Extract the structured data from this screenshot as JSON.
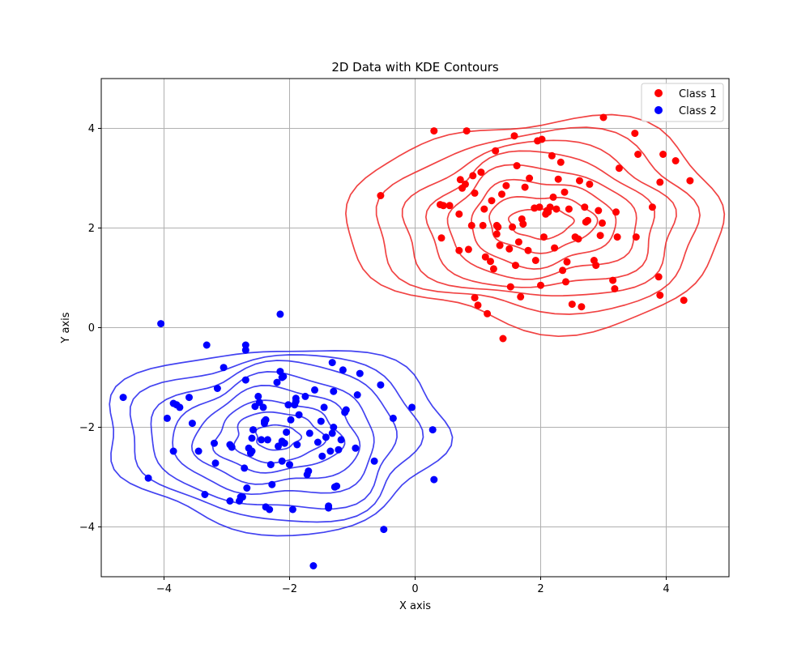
{
  "chart_data": {
    "type": "scatter",
    "title": "2D Data with KDE Contours",
    "xlabel": "X axis",
    "ylabel": "Y axis",
    "xlim": [
      -5,
      5
    ],
    "ylim": [
      -5,
      5
    ],
    "xticks": [
      -4,
      -2,
      0,
      2,
      4
    ],
    "yticks": [
      -4,
      -2,
      0,
      2,
      4
    ],
    "xtick_labels": [
      "−4",
      "−2",
      "0",
      "2",
      "4"
    ],
    "ytick_labels": [
      "−4",
      "−2",
      "0",
      "2",
      "4"
    ],
    "grid": true,
    "legend_position": "top-right",
    "series": [
      {
        "name": "Class 1",
        "color": "#ff0000",
        "contour_color": "#ee2222",
        "contour_center": [
          2.0,
          2.1
        ],
        "contour_radii": [
          [
            0.5,
            0.3
          ],
          [
            0.85,
            0.55
          ],
          [
            1.15,
            0.85
          ],
          [
            1.5,
            1.1
          ],
          [
            1.8,
            1.35
          ],
          [
            2.15,
            1.55
          ],
          [
            2.55,
            1.8
          ],
          [
            3.0,
            2.1
          ]
        ],
        "points": [
          [
            -0.55,
            2.65
          ],
          [
            0.3,
            3.95
          ],
          [
            0.4,
            2.47
          ],
          [
            0.42,
            1.8
          ],
          [
            0.55,
            2.45
          ],
          [
            0.7,
            2.28
          ],
          [
            0.7,
            1.55
          ],
          [
            0.72,
            2.97
          ],
          [
            0.75,
            2.8
          ],
          [
            0.8,
            2.88
          ],
          [
            0.82,
            3.95
          ],
          [
            0.85,
            1.57
          ],
          [
            0.9,
            2.05
          ],
          [
            0.92,
            3.05
          ],
          [
            0.95,
            2.7
          ],
          [
            0.95,
            0.6
          ],
          [
            1.0,
            0.45
          ],
          [
            1.05,
            3.12
          ],
          [
            1.08,
            2.05
          ],
          [
            1.1,
            2.38
          ],
          [
            1.12,
            1.42
          ],
          [
            1.15,
            0.28
          ],
          [
            1.2,
            1.33
          ],
          [
            1.22,
            2.55
          ],
          [
            1.25,
            1.18
          ],
          [
            1.28,
            3.55
          ],
          [
            1.3,
            1.88
          ],
          [
            1.32,
            2.02
          ],
          [
            1.35,
            1.65
          ],
          [
            1.38,
            2.68
          ],
          [
            1.4,
            -0.22
          ],
          [
            1.45,
            2.85
          ],
          [
            1.5,
            1.58
          ],
          [
            1.52,
            0.82
          ],
          [
            1.55,
            2.02
          ],
          [
            1.58,
            3.85
          ],
          [
            1.6,
            1.25
          ],
          [
            1.62,
            3.25
          ],
          [
            1.65,
            1.72
          ],
          [
            1.68,
            0.62
          ],
          [
            1.7,
            2.18
          ],
          [
            1.72,
            2.08
          ],
          [
            1.75,
            2.82
          ],
          [
            1.8,
            1.55
          ],
          [
            1.82,
            3.0
          ],
          [
            1.92,
            1.35
          ],
          [
            1.95,
            3.75
          ],
          [
            1.98,
            2.42
          ],
          [
            2.0,
            0.85
          ],
          [
            2.02,
            3.78
          ],
          [
            2.05,
            1.82
          ],
          [
            2.1,
            2.35
          ],
          [
            2.12,
            2.32
          ],
          [
            2.15,
            2.42
          ],
          [
            2.18,
            3.45
          ],
          [
            2.2,
            2.62
          ],
          [
            2.22,
            1.6
          ],
          [
            2.25,
            2.38
          ],
          [
            2.28,
            2.98
          ],
          [
            2.32,
            3.32
          ],
          [
            2.35,
            1.15
          ],
          [
            2.38,
            2.72
          ],
          [
            2.4,
            0.92
          ],
          [
            2.42,
            1.32
          ],
          [
            2.45,
            2.38
          ],
          [
            2.5,
            0.47
          ],
          [
            2.55,
            1.82
          ],
          [
            2.6,
            1.78
          ],
          [
            2.62,
            2.95
          ],
          [
            2.65,
            0.42
          ],
          [
            2.7,
            2.42
          ],
          [
            2.72,
            2.12
          ],
          [
            2.75,
            2.15
          ],
          [
            2.78,
            2.88
          ],
          [
            2.85,
            1.35
          ],
          [
            2.88,
            1.25
          ],
          [
            2.92,
            2.35
          ],
          [
            2.95,
            1.85
          ],
          [
            2.98,
            2.1
          ],
          [
            3.0,
            4.22
          ],
          [
            3.15,
            0.95
          ],
          [
            3.18,
            0.78
          ],
          [
            3.2,
            2.32
          ],
          [
            3.22,
            1.82
          ],
          [
            3.25,
            3.2
          ],
          [
            3.5,
            3.9
          ],
          [
            3.52,
            1.82
          ],
          [
            3.55,
            3.48
          ],
          [
            3.78,
            2.42
          ],
          [
            3.88,
            1.02
          ],
          [
            3.9,
            0.65
          ],
          [
            3.9,
            2.92
          ],
          [
            3.95,
            3.48
          ],
          [
            4.15,
            3.35
          ],
          [
            4.28,
            0.55
          ],
          [
            4.38,
            2.95
          ],
          [
            2.08,
            2.28
          ],
          [
            1.9,
            2.4
          ],
          [
            1.3,
            2.05
          ],
          [
            0.45,
            2.45
          ]
        ]
      },
      {
        "name": "Class 2",
        "color": "#0000ff",
        "contour_color": "#2222ee",
        "contour_center": [
          -2.2,
          -2.2
        ],
        "contour_radii": [
          [
            0.35,
            0.25
          ],
          [
            0.7,
            0.5
          ],
          [
            1.0,
            0.7
          ],
          [
            1.3,
            0.95
          ],
          [
            1.6,
            1.2
          ],
          [
            1.95,
            1.45
          ],
          [
            2.3,
            1.65
          ],
          [
            2.7,
            1.85
          ]
        ],
        "points": [
          [
            -4.65,
            -1.4
          ],
          [
            -4.25,
            -3.02
          ],
          [
            -4.05,
            0.08
          ],
          [
            -3.95,
            -1.82
          ],
          [
            -3.85,
            -2.48
          ],
          [
            -3.8,
            -1.55
          ],
          [
            -3.75,
            -1.6
          ],
          [
            -3.6,
            -1.4
          ],
          [
            -3.55,
            -1.92
          ],
          [
            -3.45,
            -2.48
          ],
          [
            -3.35,
            -3.35
          ],
          [
            -3.32,
            -0.35
          ],
          [
            -3.2,
            -2.32
          ],
          [
            -3.18,
            -2.72
          ],
          [
            -3.15,
            -1.22
          ],
          [
            -3.05,
            -0.8
          ],
          [
            -2.95,
            -3.48
          ],
          [
            -2.95,
            -2.35
          ],
          [
            -2.92,
            -2.4
          ],
          [
            -2.8,
            -3.48
          ],
          [
            -2.78,
            -3.4
          ],
          [
            -2.75,
            -3.4
          ],
          [
            -2.72,
            -2.82
          ],
          [
            -2.7,
            -1.05
          ],
          [
            -2.7,
            -0.35
          ],
          [
            -2.7,
            -0.45
          ],
          [
            -2.68,
            -3.22
          ],
          [
            -2.65,
            -2.42
          ],
          [
            -2.62,
            -2.52
          ],
          [
            -2.6,
            -2.22
          ],
          [
            -2.58,
            -2.05
          ],
          [
            -2.55,
            -1.58
          ],
          [
            -2.5,
            -1.38
          ],
          [
            -2.48,
            -1.5
          ],
          [
            -2.45,
            -2.25
          ],
          [
            -2.42,
            -1.6
          ],
          [
            -2.4,
            -1.92
          ],
          [
            -2.38,
            -3.6
          ],
          [
            -2.38,
            -1.85
          ],
          [
            -2.35,
            -2.25
          ],
          [
            -2.32,
            -3.65
          ],
          [
            -2.3,
            -2.75
          ],
          [
            -2.28,
            -3.15
          ],
          [
            -2.2,
            -1.1
          ],
          [
            -2.18,
            -2.38
          ],
          [
            -2.15,
            0.27
          ],
          [
            -2.15,
            -0.88
          ],
          [
            -2.12,
            -2.68
          ],
          [
            -2.12,
            -2.28
          ],
          [
            -2.1,
            -0.98
          ],
          [
            -2.08,
            -2.32
          ],
          [
            -2.05,
            -2.1
          ],
          [
            -2.02,
            -1.55
          ],
          [
            -2.0,
            -2.75
          ],
          [
            -1.98,
            -1.85
          ],
          [
            -1.95,
            -3.65
          ],
          [
            -1.92,
            -1.55
          ],
          [
            -1.9,
            -1.42
          ],
          [
            -1.88,
            -2.35
          ],
          [
            -1.85,
            -1.75
          ],
          [
            -1.75,
            -1.38
          ],
          [
            -1.72,
            -2.95
          ],
          [
            -1.7,
            -2.88
          ],
          [
            -1.68,
            -2.12
          ],
          [
            -1.62,
            -4.78
          ],
          [
            -1.6,
            -1.25
          ],
          [
            -1.55,
            -2.3
          ],
          [
            -1.5,
            -1.88
          ],
          [
            -1.48,
            -2.58
          ],
          [
            -1.45,
            -1.6
          ],
          [
            -1.42,
            -2.2
          ],
          [
            -1.38,
            -3.58
          ],
          [
            -1.38,
            -3.62
          ],
          [
            -1.35,
            -2.48
          ],
          [
            -1.32,
            -2.12
          ],
          [
            -1.32,
            -0.7
          ],
          [
            -1.3,
            -1.28
          ],
          [
            -1.3,
            -2.0
          ],
          [
            -1.28,
            -3.2
          ],
          [
            -1.25,
            -3.18
          ],
          [
            -1.22,
            -2.45
          ],
          [
            -1.18,
            -2.25
          ],
          [
            -1.15,
            -0.85
          ],
          [
            -1.12,
            -1.7
          ],
          [
            -1.1,
            -1.65
          ],
          [
            -0.95,
            -2.42
          ],
          [
            -0.92,
            -1.35
          ],
          [
            -0.88,
            -0.92
          ],
          [
            -0.65,
            -2.68
          ],
          [
            -0.55,
            -1.15
          ],
          [
            -0.5,
            -4.05
          ],
          [
            -0.35,
            -1.82
          ],
          [
            -0.05,
            -1.6
          ],
          [
            0.28,
            -2.05
          ],
          [
            0.3,
            -3.05
          ],
          [
            -2.12,
            -1.0
          ],
          [
            -2.4,
            -1.88
          ],
          [
            -2.6,
            -2.48
          ],
          [
            -1.9,
            -1.48
          ],
          [
            -3.85,
            -1.52
          ]
        ]
      }
    ]
  }
}
